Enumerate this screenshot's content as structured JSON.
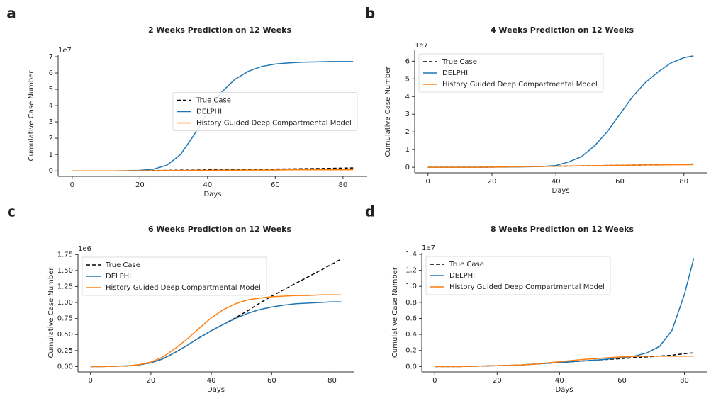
{
  "chart_data": [
    {
      "type": "line",
      "label": "a",
      "title": "2 Weeks Prediction on 12 Weeks",
      "x_label": "Days",
      "y_label": "Cumulative Case Number",
      "y_offset_label": "1e7",
      "legend": "center right",
      "x": [
        0,
        4,
        8,
        12,
        16,
        20,
        24,
        28,
        32,
        36,
        40,
        44,
        48,
        52,
        56,
        60,
        64,
        68,
        72,
        76,
        80,
        83
      ],
      "xlim": [
        -4.15,
        87.15
      ],
      "xticks": [
        0,
        20,
        40,
        60,
        80
      ],
      "ylim": [
        -0.3375,
        7.0875
      ],
      "yticks": [
        0,
        1,
        2,
        3,
        4,
        5,
        6,
        7
      ],
      "series": [
        {
          "name": "True Case",
          "color": "#000000",
          "linestyle": "dashed",
          "values": [
            0,
            0,
            0,
            0,
            0,
            0.01,
            0.02,
            0.03,
            0.04,
            0.05,
            0.06,
            0.07,
            0.08,
            0.09,
            0.1,
            0.11,
            0.12,
            0.13,
            0.14,
            0.15,
            0.17,
            0.18
          ]
        },
        {
          "name": "DELPHI",
          "color": "#1f77b4",
          "linestyle": "solid",
          "values": [
            0,
            0,
            0,
            0,
            0.01,
            0.03,
            0.1,
            0.35,
            1.0,
            2.2,
            3.6,
            4.8,
            5.6,
            6.1,
            6.4,
            6.55,
            6.62,
            6.66,
            6.68,
            6.7,
            6.7,
            6.7
          ]
        },
        {
          "name": "History Guided Deep Compartmental Model",
          "color": "#ff7f0e",
          "linestyle": "solid",
          "values": [
            0,
            0,
            0,
            0,
            0,
            0.01,
            0.01,
            0.02,
            0.02,
            0.03,
            0.03,
            0.04,
            0.04,
            0.05,
            0.05,
            0.05,
            0.06,
            0.06,
            0.06,
            0.06,
            0.06,
            0.06
          ]
        }
      ]
    },
    {
      "type": "line",
      "label": "b",
      "title": "4 Weeks Prediction on 12 Weeks",
      "x_label": "Days",
      "y_label": "Cumulative Case Number",
      "y_offset_label": "1e7",
      "legend": "upper left",
      "x": [
        0,
        4,
        8,
        12,
        16,
        20,
        24,
        28,
        32,
        36,
        40,
        44,
        48,
        52,
        56,
        60,
        64,
        68,
        72,
        76,
        80,
        83
      ],
      "xlim": [
        -4.15,
        87.15
      ],
      "xticks": [
        0,
        20,
        40,
        60,
        80
      ],
      "ylim": [
        -0.315,
        6.615
      ],
      "yticks": [
        0,
        1,
        2,
        3,
        4,
        5,
        6
      ],
      "series": [
        {
          "name": "True Case",
          "color": "#000000",
          "linestyle": "dashed",
          "values": [
            0,
            0,
            0,
            0,
            0,
            0.01,
            0.02,
            0.03,
            0.04,
            0.05,
            0.06,
            0.07,
            0.08,
            0.09,
            0.1,
            0.11,
            0.12,
            0.13,
            0.14,
            0.15,
            0.17,
            0.18
          ]
        },
        {
          "name": "DELPHI",
          "color": "#1f77b4",
          "linestyle": "solid",
          "values": [
            0,
            0,
            0,
            0,
            0,
            0.01,
            0.01,
            0.02,
            0.03,
            0.05,
            0.1,
            0.3,
            0.6,
            1.2,
            2.0,
            3.0,
            4.0,
            4.8,
            5.4,
            5.9,
            6.2,
            6.3
          ]
        },
        {
          "name": "History Guided Deep Compartmental Model",
          "color": "#ff7f0e",
          "linestyle": "solid",
          "values": [
            0,
            0,
            0,
            0,
            0,
            0.01,
            0.02,
            0.03,
            0.04,
            0.05,
            0.06,
            0.07,
            0.08,
            0.09,
            0.1,
            0.11,
            0.12,
            0.13,
            0.13,
            0.14,
            0.14,
            0.15
          ]
        }
      ]
    },
    {
      "type": "line",
      "label": "c",
      "title": "6 Weeks Prediction on 12 Weeks",
      "x_label": "Days",
      "y_label": "Cumulative Case Number",
      "y_offset_label": "1e6",
      "legend": "upper left",
      "x": [
        0,
        4,
        8,
        12,
        16,
        20,
        24,
        28,
        32,
        36,
        40,
        44,
        48,
        52,
        56,
        60,
        64,
        68,
        72,
        76,
        80,
        83
      ],
      "xlim": [
        -4.15,
        87.15
      ],
      "xticks": [
        0,
        20,
        40,
        60,
        80
      ],
      "ylim": [
        -0.084,
        1.764
      ],
      "yticks": [
        {
          "value": 0,
          "label": "0.00"
        },
        {
          "value": 0.25,
          "label": "0.25"
        },
        {
          "value": 0.5,
          "label": "0.50"
        },
        {
          "value": 0.75,
          "label": "0.75"
        },
        {
          "value": 1,
          "label": "1.00"
        },
        {
          "value": 1.25,
          "label": "1.25"
        },
        {
          "value": 1.5,
          "label": "1.50"
        },
        {
          "value": 1.75,
          "label": "1.75"
        }
      ],
      "series": [
        {
          "name": "True Case",
          "color": "#000000",
          "linestyle": "dashed",
          "values": [
            0,
            0,
            0.005,
            0.01,
            0.025,
            0.06,
            0.12,
            0.22,
            0.33,
            0.45,
            0.56,
            0.66,
            0.76,
            0.87,
            0.99,
            1.1,
            1.2,
            1.3,
            1.4,
            1.5,
            1.6,
            1.68
          ]
        },
        {
          "name": "DELPHI",
          "color": "#1f77b4",
          "linestyle": "solid",
          "values": [
            0,
            0,
            0.005,
            0.01,
            0.025,
            0.06,
            0.12,
            0.22,
            0.33,
            0.45,
            0.56,
            0.66,
            0.75,
            0.83,
            0.89,
            0.93,
            0.96,
            0.98,
            0.99,
            1.0,
            1.01,
            1.01
          ]
        },
        {
          "name": "History Guided Deep Compartmental Model",
          "color": "#ff7f0e",
          "linestyle": "solid",
          "values": [
            0,
            0,
            0.005,
            0.01,
            0.03,
            0.07,
            0.15,
            0.28,
            0.43,
            0.6,
            0.76,
            0.89,
            0.98,
            1.04,
            1.07,
            1.09,
            1.1,
            1.11,
            1.11,
            1.12,
            1.12,
            1.12
          ]
        }
      ]
    },
    {
      "type": "line",
      "label": "d",
      "title": "8 Weeks Prediction on 12 Weeks",
      "x_label": "Days",
      "y_label": "Cumulative Case Number",
      "y_offset_label": "1e7",
      "legend": "upper left",
      "x": [
        0,
        4,
        8,
        12,
        16,
        20,
        24,
        28,
        32,
        36,
        40,
        44,
        48,
        52,
        56,
        60,
        64,
        68,
        72,
        76,
        80,
        83
      ],
      "xlim": [
        -4.15,
        87.15
      ],
      "xticks": [
        0,
        20,
        40,
        60,
        80
      ],
      "ylim": [
        -0.0675,
        1.4175
      ],
      "yticks": [
        {
          "value": 0,
          "label": "0.0"
        },
        {
          "value": 0.2,
          "label": "0.2"
        },
        {
          "value": 0.4,
          "label": "0.4"
        },
        {
          "value": 0.6,
          "label": "0.6"
        },
        {
          "value": 0.8,
          "label": "0.8"
        },
        {
          "value": 1,
          "label": "1.0"
        },
        {
          "value": 1.2,
          "label": "1.2"
        },
        {
          "value": 1.4,
          "label": "1.4"
        }
      ],
      "series": [
        {
          "name": "True Case",
          "color": "#000000",
          "linestyle": "dashed",
          "values": [
            0,
            0,
            0,
            0.003,
            0.007,
            0.01,
            0.015,
            0.02,
            0.03,
            0.04,
            0.05,
            0.06,
            0.07,
            0.08,
            0.09,
            0.1,
            0.11,
            0.12,
            0.13,
            0.14,
            0.16,
            0.17
          ]
        },
        {
          "name": "DELPHI",
          "color": "#1f77b4",
          "linestyle": "solid",
          "values": [
            0,
            0,
            0,
            0.003,
            0.007,
            0.01,
            0.015,
            0.02,
            0.03,
            0.04,
            0.05,
            0.06,
            0.07,
            0.08,
            0.095,
            0.11,
            0.13,
            0.17,
            0.25,
            0.45,
            0.9,
            1.35
          ]
        },
        {
          "name": "History Guided Deep Compartmental Model",
          "color": "#ff7f0e",
          "linestyle": "solid",
          "values": [
            0,
            0,
            0,
            0.003,
            0.007,
            0.01,
            0.015,
            0.02,
            0.03,
            0.045,
            0.06,
            0.075,
            0.09,
            0.1,
            0.11,
            0.12,
            0.125,
            0.128,
            0.13,
            0.13,
            0.13,
            0.13
          ]
        }
      ]
    }
  ]
}
